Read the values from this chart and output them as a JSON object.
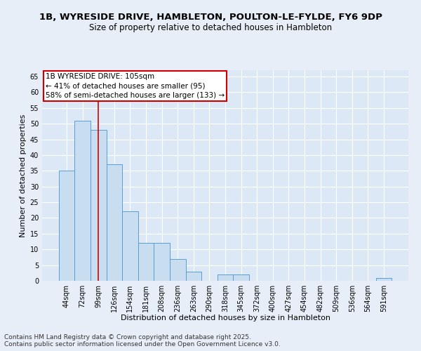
{
  "title_line1": "1B, WYRESIDE DRIVE, HAMBLETON, POULTON-LE-FYLDE, FY6 9DP",
  "title_line2": "Size of property relative to detached houses in Hambleton",
  "xlabel": "Distribution of detached houses by size in Hambleton",
  "ylabel": "Number of detached properties",
  "categories": [
    "44sqm",
    "72sqm",
    "99sqm",
    "126sqm",
    "154sqm",
    "181sqm",
    "208sqm",
    "236sqm",
    "263sqm",
    "290sqm",
    "318sqm",
    "345sqm",
    "372sqm",
    "400sqm",
    "427sqm",
    "454sqm",
    "482sqm",
    "509sqm",
    "536sqm",
    "564sqm",
    "591sqm"
  ],
  "values": [
    35,
    51,
    48,
    37,
    22,
    12,
    12,
    7,
    3,
    0,
    2,
    2,
    0,
    0,
    0,
    0,
    0,
    0,
    0,
    0,
    1
  ],
  "bar_color": "#c9ddf0",
  "bar_edge_color": "#5a9fd4",
  "red_line_index": 2,
  "ylim": [
    0,
    67
  ],
  "yticks": [
    0,
    5,
    10,
    15,
    20,
    25,
    30,
    35,
    40,
    45,
    50,
    55,
    60,
    65
  ],
  "annotation_text": "1B WYRESIDE DRIVE: 105sqm\n← 41% of detached houses are smaller (95)\n58% of semi-detached houses are larger (133) →",
  "annotation_box_color": "#ffffff",
  "annotation_box_edge_color": "#cc0000",
  "footer_line1": "Contains HM Land Registry data © Crown copyright and database right 2025.",
  "footer_line2": "Contains public sector information licensed under the Open Government Licence v3.0.",
  "fig_bg_color": "#e8eef8",
  "ax_bg_color": "#dce8f5",
  "grid_color": "#ffffff",
  "title_fontsize": 9.5,
  "subtitle_fontsize": 8.5,
  "axis_label_fontsize": 8,
  "tick_fontsize": 7,
  "annotation_fontsize": 7.5,
  "footer_fontsize": 6.5
}
